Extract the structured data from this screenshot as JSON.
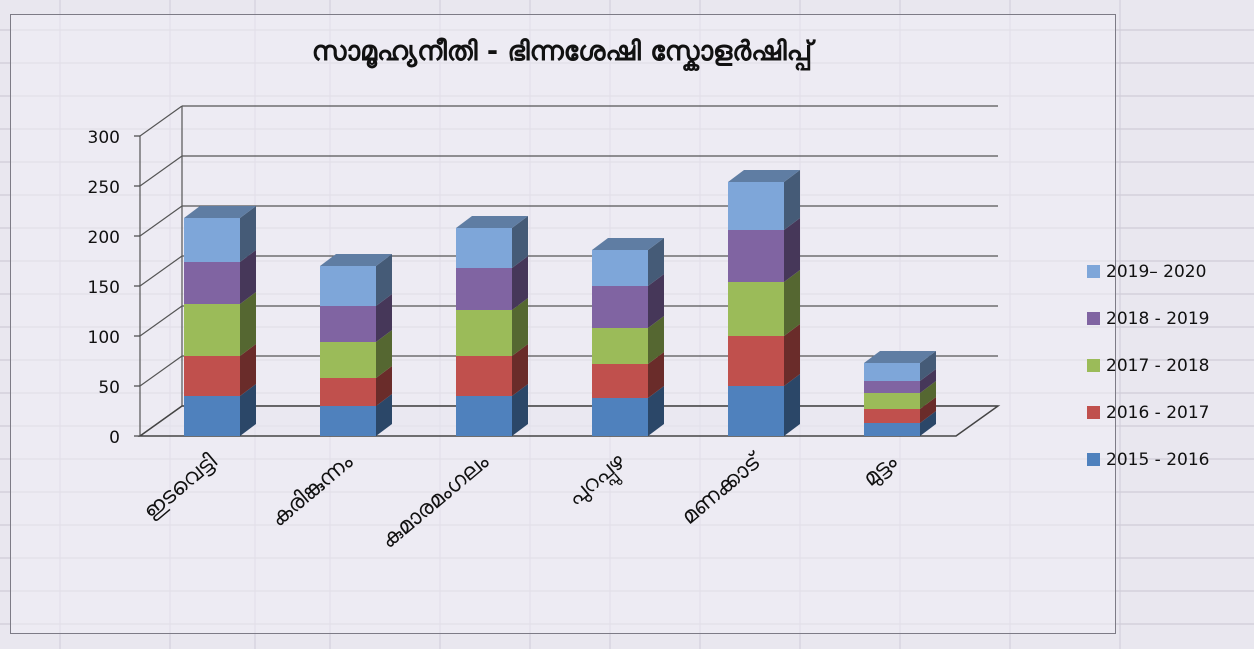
{
  "chart_data": {
    "type": "bar",
    "stacked": true,
    "title": "സാമൂഹ്യനീതി - ഭിന്നശേഷി സ്കോളർഷിപ്പ്",
    "categories": [
      "ഇടവെട്ടി",
      "കരിങ്കുന്നം",
      "കുമാരമംഗലം",
      "പുറപ്പുഴ",
      "മണക്കാട്",
      "മുട്ടം"
    ],
    "series": [
      {
        "name": "2015 - 2016",
        "color": "#4f81bd",
        "values": [
          40,
          30,
          40,
          38,
          50,
          13
        ]
      },
      {
        "name": "2016 - 2017",
        "color": "#c0504d",
        "values": [
          40,
          28,
          40,
          34,
          50,
          14
        ]
      },
      {
        "name": "2017 - 2018",
        "color": "#9bbb59",
        "values": [
          52,
          36,
          46,
          36,
          54,
          16
        ]
      },
      {
        "name": "2018 - 2019",
        "color": "#8064a2",
        "values": [
          42,
          36,
          42,
          42,
          52,
          12
        ]
      },
      {
        "name": "2019– 2020",
        "color": "#7ea6d9",
        "values": [
          44,
          40,
          40,
          36,
          48,
          18
        ]
      }
    ],
    "yticks": [
      0,
      50,
      100,
      150,
      200,
      250,
      300
    ],
    "ylim": [
      0,
      300
    ],
    "grid": true,
    "legend_position": "right"
  }
}
